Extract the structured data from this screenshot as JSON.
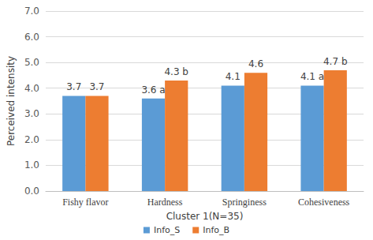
{
  "chart_data": {
    "type": "bar",
    "x_label": "Cluster 1(N=35)",
    "y_label": "Perceived intensity",
    "categories": [
      "Fishy flavor",
      "Hardness",
      "Springiness",
      "Cohesiveness"
    ],
    "series": [
      {
        "name": "Info_S",
        "color": "#5b9bd5",
        "values": [
          3.7,
          3.6,
          4.1,
          4.1
        ],
        "value_labels": [
          "3.7",
          "3.6 a",
          "4.1",
          "4.1 a"
        ]
      },
      {
        "name": "Info_B",
        "color": "#ed7d31",
        "values": [
          3.7,
          4.3,
          4.6,
          4.7
        ],
        "value_labels": [
          "3.7",
          "4.3 b",
          "4.6",
          "4.7 b"
        ]
      }
    ],
    "ylim": [
      0,
      7
    ],
    "yticks": [
      {
        "value": 0,
        "label": "0.0"
      },
      {
        "value": 1,
        "label": "1.0"
      },
      {
        "value": 2,
        "label": "2.0"
      },
      {
        "value": 3,
        "label": "3.0"
      },
      {
        "value": 4,
        "label": "4.0"
      },
      {
        "value": 5,
        "label": "5.0"
      },
      {
        "value": 6,
        "label": "6.0"
      },
      {
        "value": 7,
        "label": "7.0"
      }
    ],
    "grid": true,
    "legend": "bottom",
    "data_labels": true
  }
}
